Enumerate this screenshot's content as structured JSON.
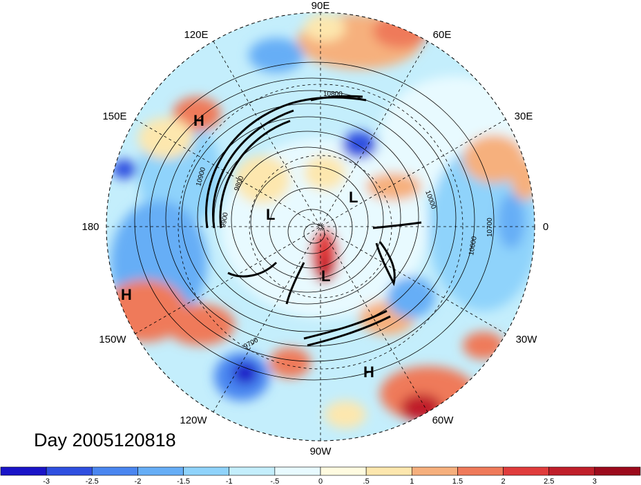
{
  "title": "Day 2005120818",
  "longitude_labels": {
    "top": "90E",
    "upper_left": "120E",
    "upper_right": "60E",
    "left_upper": "150E",
    "right_upper": "30E",
    "left": "180",
    "right": "0",
    "left_lower": "150W",
    "right_lower": "30W",
    "lower_left": "120W",
    "lower_right": "60W",
    "bottom": "90W"
  },
  "pressure_systems": [
    "H",
    "H",
    "H",
    "L",
    "L",
    "L"
  ],
  "contour_labels": [
    "10800",
    "9800",
    "9900",
    "10000",
    "10600",
    "10700",
    "10900",
    "9700"
  ],
  "colorbar": {
    "labels": [
      "-3",
      "-2.5",
      "-2",
      "-1.5",
      "-1",
      "-.5",
      "0",
      ".5",
      "1",
      "1.5",
      "2",
      "2.5",
      "3"
    ],
    "colors": [
      "#1a14c8",
      "#2f4fe0",
      "#4a86f0",
      "#66aef6",
      "#8fd3fb",
      "#c4eefc",
      "#e8faff",
      "#fffbe0",
      "#fde7ae",
      "#f6b07d",
      "#ef7a5a",
      "#e03c3c",
      "#c01f2a",
      "#9c0a1c"
    ]
  }
}
